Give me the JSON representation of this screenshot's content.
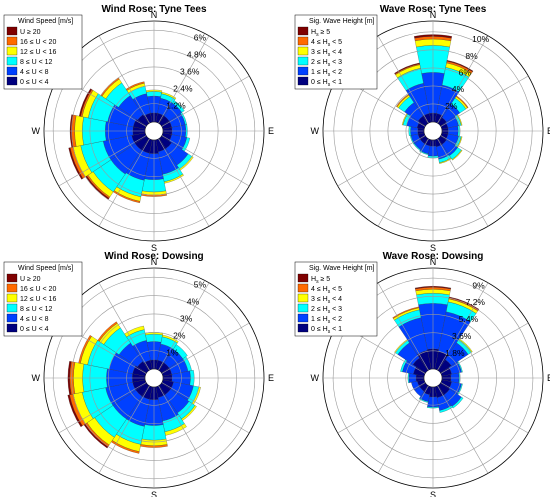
{
  "chart_data": [
    {
      "type": "polar-stacked-bar",
      "title": "Wind Rose: Tyne Tees",
      "legend_title": "Wind Speed [m/s]",
      "legend_position": "top-left",
      "directions": [
        "N",
        "NNE",
        "NE",
        "ENE",
        "E",
        "ESE",
        "SE",
        "SSE",
        "S",
        "SSW",
        "SW",
        "WSW",
        "W",
        "WNW",
        "NW",
        "NNW"
      ],
      "compass_labels": [
        "N",
        "E",
        "S",
        "W"
      ],
      "ring_labels": [
        "1.2%",
        "2.4%",
        "3.6%",
        "4.8%",
        "6%"
      ],
      "ring_values": [
        1.2,
        2.4,
        3.6,
        4.8,
        6.0
      ],
      "rmax": 6.6,
      "series": [
        {
          "name": "0 ≤ U < 4",
          "color": "#00007f",
          "values": [
            0.6,
            0.6,
            0.6,
            0.6,
            0.6,
            0.6,
            0.8,
            0.8,
            0.9,
            0.9,
            0.9,
            0.9,
            0.8,
            0.8,
            0.7,
            0.6
          ]
        },
        {
          "name": "4 ≤ U < 8",
          "color": "#0040ff",
          "values": [
            1.1,
            1.0,
            1.0,
            0.9,
            0.9,
            1.0,
            1.3,
            1.5,
            1.7,
            1.8,
            1.9,
            1.9,
            1.8,
            1.7,
            1.5,
            1.3
          ]
        },
        {
          "name": "8 ≤ U < 12",
          "color": "#00ffff",
          "values": [
            0.3,
            0.3,
            0.2,
            0.1,
            0.1,
            0.2,
            0.3,
            0.5,
            0.8,
            1.1,
            1.4,
            1.5,
            1.5,
            1.3,
            1.0,
            0.5
          ]
        },
        {
          "name": "12 ≤ U < 16",
          "color": "#ffff00",
          "values": [
            0.1,
            0.1,
            0.0,
            0.0,
            0.0,
            0.0,
            0.1,
            0.1,
            0.2,
            0.3,
            0.4,
            0.5,
            0.5,
            0.4,
            0.3,
            0.2
          ]
        },
        {
          "name": "16 ≤ U < 20",
          "color": "#ff6a00",
          "values": [
            0.0,
            0.0,
            0.0,
            0.0,
            0.0,
            0.0,
            0.0,
            0.0,
            0.1,
            0.1,
            0.1,
            0.2,
            0.2,
            0.1,
            0.1,
            0.1
          ]
        },
        {
          "name": "U ≥ 20",
          "color": "#7f0000",
          "values": [
            0.0,
            0.0,
            0.0,
            0.0,
            0.0,
            0.0,
            0.0,
            0.0,
            0.0,
            0.0,
            0.1,
            0.1,
            0.1,
            0.1,
            0.0,
            0.0
          ]
        }
      ]
    },
    {
      "type": "polar-stacked-bar",
      "title": "Wave Rose: Tyne Tees",
      "legend_title": "Sig. Wave Height [m]",
      "legend_position": "top-left",
      "directions": [
        "N",
        "NNE",
        "NE",
        "ENE",
        "E",
        "ESE",
        "SE",
        "SSE",
        "S",
        "SSW",
        "SW",
        "WSW",
        "W",
        "WNW",
        "NW",
        "NNW"
      ],
      "compass_labels": [
        "N",
        "E",
        "S",
        "W"
      ],
      "ring_labels": [
        "2%",
        "4%",
        "6%",
        "8%",
        "10%"
      ],
      "ring_values": [
        2,
        4,
        6,
        8,
        10
      ],
      "rmax": 11.2,
      "series": [
        {
          "name": "0 ≤ Hs < 1",
          "color": "#00007f",
          "values": [
            1.0,
            1.0,
            0.8,
            0.7,
            0.7,
            0.7,
            0.8,
            0.8,
            0.7,
            0.7,
            0.7,
            0.7,
            0.7,
            0.8,
            1.0,
            1.0
          ]
        },
        {
          "name": "1 ≤ Hs < 2",
          "color": "#0040ff",
          "values": [
            4.5,
            3.2,
            1.8,
            1.2,
            1.1,
            1.2,
            1.5,
            1.4,
            1.1,
            0.9,
            0.8,
            0.8,
            0.8,
            1.2,
            1.8,
            3.4
          ]
        },
        {
          "name": "2 ≤ Hs < 3",
          "color": "#00ffff",
          "values": [
            3.0,
            2.0,
            0.8,
            0.3,
            0.2,
            0.3,
            0.5,
            0.4,
            0.2,
            0.1,
            0.1,
            0.1,
            0.2,
            0.4,
            0.8,
            1.7
          ]
        },
        {
          "name": "3 ≤ Hs < 4",
          "color": "#ffff00",
          "values": [
            0.7,
            0.5,
            0.2,
            0.1,
            0.0,
            0.1,
            0.1,
            0.1,
            0.0,
            0.0,
            0.0,
            0.0,
            0.0,
            0.1,
            0.2,
            0.4
          ]
        },
        {
          "name": "4 ≤ Hs < 5",
          "color": "#ff6a00",
          "values": [
            0.3,
            0.2,
            0.1,
            0.0,
            0.0,
            0.0,
            0.0,
            0.0,
            0.0,
            0.0,
            0.0,
            0.0,
            0.0,
            0.0,
            0.1,
            0.1
          ]
        },
        {
          "name": "Hs ≥ 5",
          "color": "#7f0000",
          "values": [
            0.2,
            0.1,
            0.0,
            0.0,
            0.0,
            0.0,
            0.0,
            0.0,
            0.0,
            0.0,
            0.0,
            0.0,
            0.0,
            0.0,
            0.0,
            0.1
          ]
        }
      ]
    },
    {
      "type": "polar-stacked-bar",
      "title": "Wind Rose: Dowsing",
      "legend_title": "Wind Speed [m/s]",
      "legend_position": "top-left",
      "directions": [
        "N",
        "NNE",
        "NE",
        "ENE",
        "E",
        "ESE",
        "SE",
        "SSE",
        "S",
        "SSW",
        "SW",
        "WSW",
        "W",
        "WNW",
        "NW",
        "NNW"
      ],
      "compass_labels": [
        "N",
        "E",
        "S",
        "W"
      ],
      "ring_labels": [
        "1%",
        "2%",
        "3%",
        "4%",
        "5%"
      ],
      "ring_values": [
        1,
        2,
        3,
        4,
        5
      ],
      "rmax": 5.5,
      "series": [
        {
          "name": "0 ≤ U < 4",
          "color": "#00007f",
          "values": [
            0.5,
            0.5,
            0.5,
            0.5,
            0.5,
            0.6,
            0.6,
            0.6,
            0.7,
            0.7,
            0.7,
            0.7,
            0.7,
            0.7,
            0.6,
            0.5
          ]
        },
        {
          "name": "4 ≤ U < 8",
          "color": "#0040ff",
          "values": [
            1.0,
            0.9,
            0.9,
            0.9,
            1.0,
            1.1,
            1.2,
            1.3,
            1.4,
            1.5,
            1.5,
            1.5,
            1.4,
            1.3,
            1.2,
            1.1
          ]
        },
        {
          "name": "8 ≤ U < 12",
          "color": "#00ffff",
          "values": [
            0.4,
            0.4,
            0.3,
            0.2,
            0.2,
            0.3,
            0.4,
            0.6,
            0.8,
            1.0,
            1.2,
            1.3,
            1.3,
            1.2,
            1.0,
            0.6
          ]
        },
        {
          "name": "12 ≤ U < 16",
          "color": "#ffff00",
          "values": [
            0.1,
            0.1,
            0.0,
            0.0,
            0.0,
            0.1,
            0.1,
            0.2,
            0.3,
            0.4,
            0.5,
            0.5,
            0.5,
            0.4,
            0.3,
            0.2
          ]
        },
        {
          "name": "16 ≤ U < 20",
          "color": "#ff6a00",
          "values": [
            0.0,
            0.0,
            0.0,
            0.0,
            0.0,
            0.0,
            0.0,
            0.0,
            0.1,
            0.1,
            0.1,
            0.2,
            0.2,
            0.1,
            0.1,
            0.0
          ]
        },
        {
          "name": "U ≥ 20",
          "color": "#7f0000",
          "values": [
            0.0,
            0.0,
            0.0,
            0.0,
            0.0,
            0.0,
            0.0,
            0.0,
            0.0,
            0.0,
            0.1,
            0.1,
            0.1,
            0.0,
            0.0,
            0.0
          ]
        }
      ]
    },
    {
      "type": "polar-stacked-bar",
      "title": "Wave Rose: Dowsing",
      "legend_title": "Sig. Wave Height [m]",
      "legend_position": "top-left",
      "directions": [
        "N",
        "NNE",
        "NE",
        "ENE",
        "E",
        "ESE",
        "SE",
        "SSE",
        "S",
        "SSW",
        "SW",
        "WSW",
        "W",
        "WNW",
        "NW",
        "NNW"
      ],
      "compass_labels": [
        "N",
        "E",
        "S",
        "W"
      ],
      "ring_labels": [
        "1.8%",
        "3.6%",
        "5.4%",
        "7.2%",
        "9%"
      ],
      "ring_values": [
        1.8,
        3.6,
        5.4,
        7.2,
        9.0
      ],
      "rmax": 10.0,
      "series": [
        {
          "name": "0 ≤ Hs < 1",
          "color": "#00007f",
          "values": [
            2.0,
            1.8,
            1.3,
            1.0,
            0.9,
            1.0,
            1.1,
            1.1,
            1.0,
            0.8,
            0.7,
            0.7,
            0.8,
            1.1,
            1.5,
            1.9
          ]
        },
        {
          "name": "1 ≤ Hs < 2",
          "color": "#0040ff",
          "values": [
            4.5,
            4.0,
            2.0,
            1.0,
            0.8,
            1.0,
            1.4,
            1.3,
            1.0,
            0.7,
            0.6,
            0.6,
            0.7,
            1.1,
            1.8,
            3.3
          ]
        },
        {
          "name": "2 ≤ Hs < 3",
          "color": "#00ffff",
          "values": [
            1.0,
            1.0,
            0.4,
            0.1,
            0.1,
            0.1,
            0.2,
            0.2,
            0.1,
            0.1,
            0.0,
            0.0,
            0.1,
            0.2,
            0.3,
            0.8
          ]
        },
        {
          "name": "3 ≤ Hs < 4",
          "color": "#ffff00",
          "values": [
            0.4,
            0.3,
            0.1,
            0.0,
            0.0,
            0.0,
            0.0,
            0.0,
            0.0,
            0.0,
            0.0,
            0.0,
            0.0,
            0.0,
            0.1,
            0.2
          ]
        },
        {
          "name": "4 ≤ Hs < 5",
          "color": "#ff6a00",
          "values": [
            0.2,
            0.1,
            0.0,
            0.0,
            0.0,
            0.0,
            0.0,
            0.0,
            0.0,
            0.0,
            0.0,
            0.0,
            0.0,
            0.0,
            0.0,
            0.1
          ]
        },
        {
          "name": "Hs ≥ 5",
          "color": "#7f0000",
          "values": [
            0.1,
            0.1,
            0.0,
            0.0,
            0.0,
            0.0,
            0.0,
            0.0,
            0.0,
            0.0,
            0.0,
            0.0,
            0.0,
            0.0,
            0.0,
            0.0
          ]
        }
      ]
    }
  ]
}
